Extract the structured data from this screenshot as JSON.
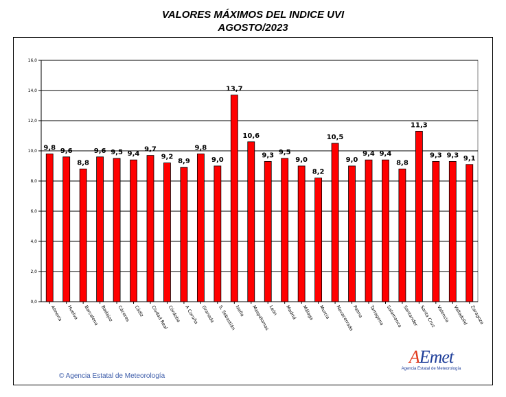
{
  "chart_data": {
    "type": "bar",
    "title": "VALORES MÁXIMOS DEL INDICE UVI",
    "subtitle": "AGOSTO/2023",
    "categories": [
      "Almería",
      "Huelva",
      "Barcelona",
      "Badajoz",
      "Cáceres",
      "Cádiz",
      "Ciudad Real",
      "Córdoba",
      "A Coruña",
      "Granada",
      "S. Sebastián",
      "Izaña",
      "Maspalomas",
      "León",
      "Madrid",
      "Málaga",
      "Murcia",
      "Navacerrada",
      "Palma",
      "Tarragona",
      "Salamanca",
      "Santander",
      "Santa Cruz",
      "Valencia",
      "Valladolid",
      "Zaragoza"
    ],
    "values": [
      9.8,
      9.6,
      8.8,
      9.6,
      9.5,
      9.4,
      9.7,
      9.2,
      8.9,
      9.8,
      9.0,
      13.7,
      10.6,
      9.3,
      9.5,
      9.0,
      8.2,
      10.5,
      9.0,
      9.4,
      9.4,
      8.8,
      11.3,
      9.3,
      9.3,
      9.1
    ],
    "value_labels": [
      "9,8",
      "9,6",
      "8,8",
      "9,6",
      "9,5",
      "9,4",
      "9,7",
      "9,2",
      "8,9",
      "9,8",
      "9,0",
      "13,7",
      "10,6",
      "9,3",
      "9,5",
      "9,0",
      "8,2",
      "10,5",
      "9,0",
      "9,4",
      "9,4",
      "8,8",
      "11,3",
      "9,3",
      "9,3",
      "9,1"
    ],
    "yticks": [
      0,
      2,
      4,
      6,
      8,
      10,
      12,
      14,
      16
    ],
    "ytick_labels": [
      "0,0",
      "2,0",
      "4,0",
      "6,0",
      "8,0",
      "10,0",
      "12,0",
      "14,0",
      "16,0"
    ],
    "ylim": [
      0,
      16
    ],
    "xlabel": "",
    "ylabel": "",
    "grid": true,
    "bar_color": "#ff0000",
    "plot_background": "#ffffff"
  },
  "footer": {
    "text": "Agencia Estatal de Meteorología",
    "icon": "copyright-icon"
  },
  "logo": {
    "mark": "AEmet",
    "subtitle": "Agencia Estatal de Meteorología"
  }
}
